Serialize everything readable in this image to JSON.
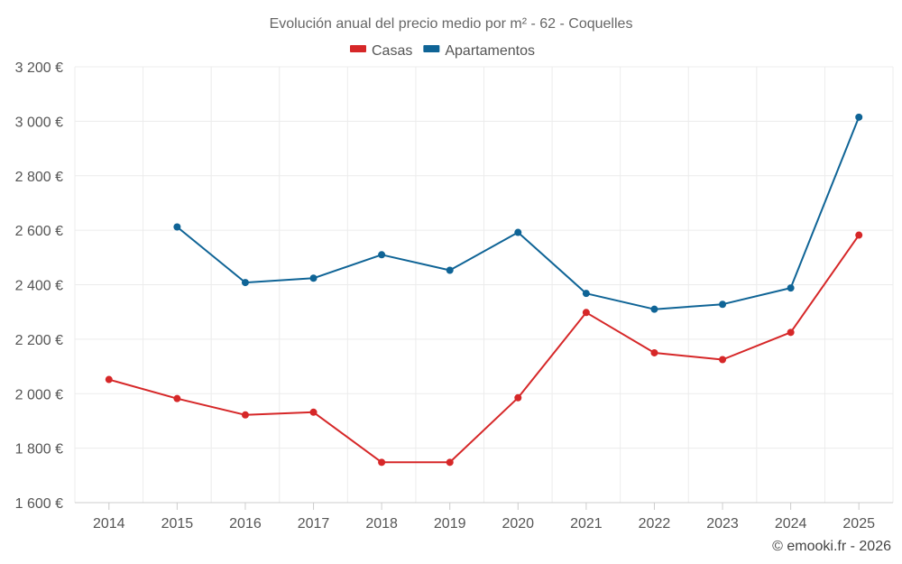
{
  "chart_data": {
    "type": "line",
    "title": "Evolución anual del precio medio por m² - 62 - Coquelles",
    "categories": [
      "2014",
      "2015",
      "2016",
      "2017",
      "2018",
      "2019",
      "2020",
      "2021",
      "2022",
      "2023",
      "2024",
      "2025"
    ],
    "series": [
      {
        "name": "Casas",
        "color": "#d62728",
        "values": [
          2052,
          1982,
          1922,
          1932,
          1748,
          1748,
          1985,
          2298,
          2150,
          2125,
          2225,
          2582
        ]
      },
      {
        "name": "Apartamentos",
        "color": "#0f6496",
        "values": [
          null,
          2612,
          2408,
          2424,
          2510,
          2453,
          2592,
          2368,
          2310,
          2328,
          2388,
          3015
        ]
      }
    ],
    "ylim": [
      1600,
      3200
    ],
    "yticks": [
      1600,
      1800,
      2000,
      2200,
      2400,
      2600,
      2800,
      3000,
      3200
    ],
    "ytick_labels": [
      "1 600 €",
      "1 800 €",
      "2 000 €",
      "2 200 €",
      "2 400 €",
      "2 600 €",
      "2 800 €",
      "3 000 €",
      "3 200 €"
    ],
    "xlabel": "",
    "ylabel": "",
    "grid": true,
    "legend": "top-center"
  },
  "credit": "© emooki.fr - 2026"
}
